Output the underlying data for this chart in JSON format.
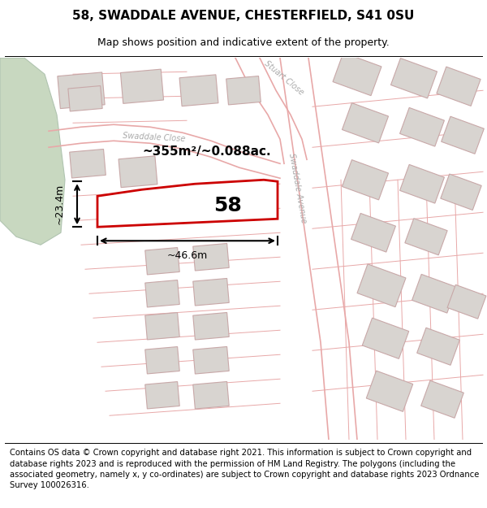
{
  "title": "58, SWADDALE AVENUE, CHESTERFIELD, S41 0SU",
  "subtitle": "Map shows position and indicative extent of the property.",
  "footer": "Contains OS data © Crown copyright and database right 2021. This information is subject to Crown copyright and database rights 2023 and is reproduced with the permission of HM Land Registry. The polygons (including the associated geometry, namely x, y co-ordinates) are subject to Crown copyright and database rights 2023 Ordnance Survey 100026316.",
  "map_bg": "#f7f4f2",
  "road_color": "#e8a8a8",
  "road_lw": 1.0,
  "building_fill": "#d8d4d0",
  "building_outline": "#c8a8a8",
  "green_area_color": "#c8d8c0",
  "green_outline": "#b0c4b0",
  "highlight_fill": "#ffffff",
  "highlight_outline": "#cc0000",
  "area_text": "~355m²/~0.088ac.",
  "number_text": "58",
  "dim_width": "~46.6m",
  "dim_height": "~23.4m",
  "title_fontsize": 11,
  "subtitle_fontsize": 9,
  "footer_fontsize": 7.2,
  "road_label_color": "#aaaaaa",
  "road_label_size": 7
}
